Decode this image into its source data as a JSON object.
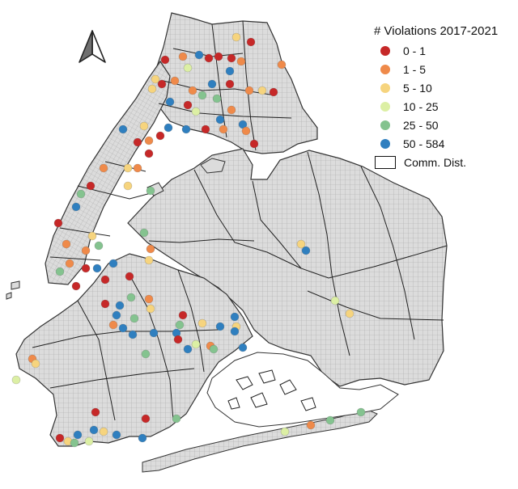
{
  "legend": {
    "title": "# Violations 2017-2021",
    "classes": [
      {
        "label": "0 - 1",
        "color": "#c62828"
      },
      {
        "label": "1 - 5",
        "color": "#ef8a4a"
      },
      {
        "label": "5 - 10",
        "color": "#f6d47e"
      },
      {
        "label": "10 - 25",
        "color": "#dcefa4"
      },
      {
        "label": "25 - 50",
        "color": "#84c38f"
      },
      {
        "label": "50 - 584",
        "color": "#2f7fbf"
      }
    ],
    "boundary_label": "Comm. Dist."
  },
  "icons": {
    "north_arrow": "north-arrow-icon"
  },
  "colors": {
    "land": "#d9d9d9",
    "district_line": "#333333",
    "street_line": "#9e9e9e"
  }
}
